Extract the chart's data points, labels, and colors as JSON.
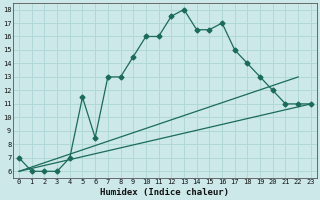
{
  "xlabel": "Humidex (Indice chaleur)",
  "bg_color": "#cce8e8",
  "line_color": "#1a6b5a",
  "grid_color": "#b0d8d8",
  "xlim": [
    -0.5,
    23.5
  ],
  "ylim": [
    5.5,
    18.5
  ],
  "yticks": [
    6,
    7,
    8,
    9,
    10,
    11,
    12,
    13,
    14,
    15,
    16,
    17,
    18
  ],
  "xticks": [
    0,
    1,
    2,
    3,
    4,
    5,
    6,
    7,
    8,
    9,
    10,
    11,
    12,
    13,
    14,
    15,
    16,
    17,
    18,
    19,
    20,
    21,
    22,
    23
  ],
  "line1_x": [
    0,
    1,
    2,
    3,
    4,
    5,
    6,
    7,
    8,
    9,
    10,
    11,
    12,
    13,
    14,
    15,
    16,
    17,
    18,
    19,
    20,
    21,
    22,
    23
  ],
  "line1_y": [
    7,
    6,
    6,
    6,
    7,
    11.5,
    8.5,
    13,
    13,
    14.5,
    16,
    16,
    17.5,
    18,
    16.5,
    16.5,
    17,
    15,
    14,
    13,
    12,
    11,
    11,
    11
  ],
  "line2_x": [
    0,
    22
  ],
  "line2_y": [
    6,
    13
  ],
  "line3_x": [
    0,
    23
  ],
  "line3_y": [
    6,
    11
  ],
  "marker": "D",
  "markersize": 2.5,
  "linewidth": 0.9
}
